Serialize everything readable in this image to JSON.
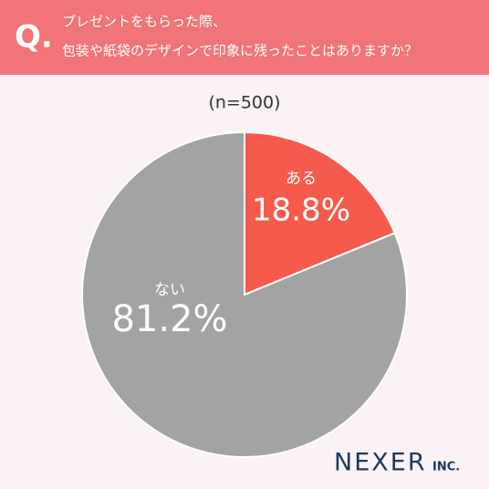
{
  "chart_data": {
    "type": "pie",
    "title_prefix": "Q.",
    "title": [
      "プレゼントをもらった際、",
      "包装や紙袋のデザインで印象に残ったことはありますか？"
    ],
    "subtitle": "(n=500)",
    "categories": [
      "ある",
      "ない"
    ],
    "values": [
      18.8,
      81.2
    ],
    "value_labels": [
      "18.8%",
      "81.2%"
    ],
    "colors": [
      "#f65a4d",
      "#a3a3a3"
    ]
  },
  "logo": {
    "name": "NEXER",
    "suffix": "INC."
  }
}
